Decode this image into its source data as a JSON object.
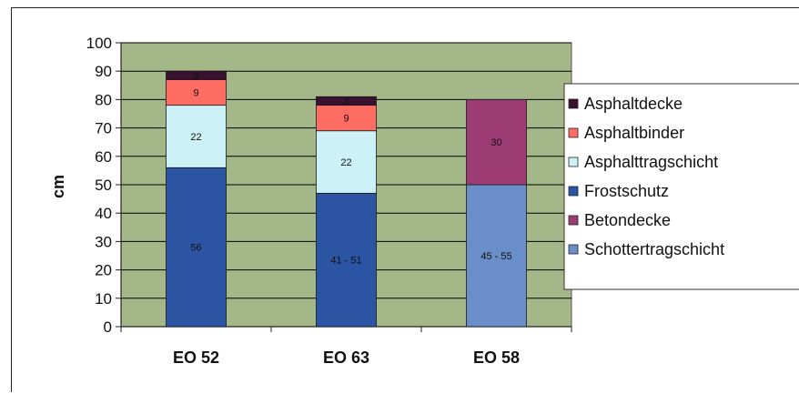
{
  "chart_data": {
    "type": "bar",
    "stacked": true,
    "ylabel": "cm",
    "ylim": [
      0,
      100
    ],
    "yticks": [
      0,
      10,
      20,
      30,
      40,
      50,
      60,
      70,
      80,
      90,
      100
    ],
    "categories": [
      "EO 52",
      "EO 63",
      "EO 58"
    ],
    "grid": true,
    "legend_position": "right",
    "series": [
      {
        "name": "Schottertragschicht",
        "color": "#6a8ec8",
        "values": [
          0,
          0,
          50
        ],
        "labels": [
          "",
          "",
          "45 - 55"
        ]
      },
      {
        "name": "Frostschutz",
        "color": "#2b55a3",
        "values": [
          56,
          47,
          0
        ],
        "labels": [
          "56",
          "41 - 51",
          ""
        ]
      },
      {
        "name": "Betondecke",
        "color": "#9c3b74",
        "values": [
          0,
          0,
          30
        ],
        "labels": [
          "",
          "",
          "30"
        ]
      },
      {
        "name": "Asphalttragschicht",
        "color": "#ccf2f8",
        "values": [
          22,
          22,
          0
        ],
        "labels": [
          "22",
          "22",
          ""
        ]
      },
      {
        "name": "Asphaltbinder",
        "color": "#ff6c62",
        "values": [
          9,
          9,
          0
        ],
        "labels": [
          "9",
          "9",
          ""
        ]
      },
      {
        "name": "Asphaltdecke",
        "color": "#3a1230",
        "values": [
          3,
          3,
          0
        ],
        "labels": [
          "3",
          "3",
          ""
        ]
      }
    ],
    "legend_order": [
      "Asphaltdecke",
      "Asphaltbinder",
      "Asphalttragschicht",
      "Frostschutz",
      "Betondecke",
      "Schottertragschicht"
    ],
    "colors": {
      "plot_background": "#a3b788",
      "gridline": "#000000"
    }
  }
}
